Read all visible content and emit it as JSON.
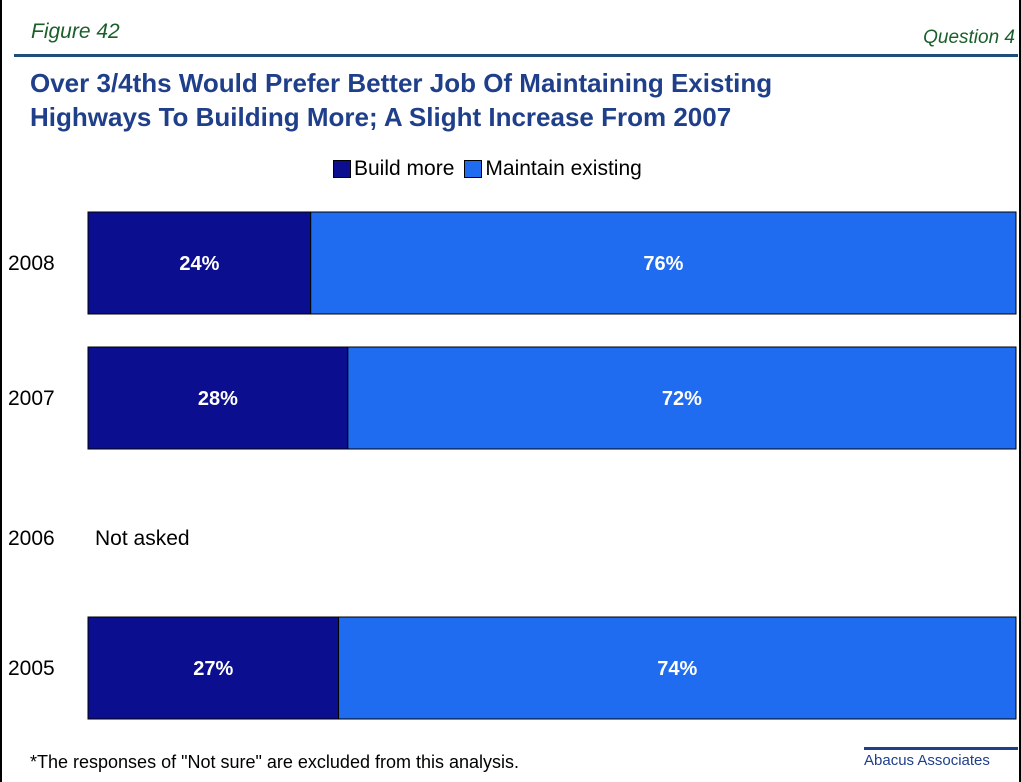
{
  "header": {
    "figure": "Figure 42",
    "question": "Question 4",
    "title_line1": "Over 3/4ths Would Prefer Better Job Of Maintaining Existing",
    "title_line2": "Highways To Building More; A Slight Increase From 2007"
  },
  "footnote": "*The responses of \"Not sure\" are excluded from this analysis.",
  "source": "Abacus Associates",
  "colors": {
    "build_more": "#0b0e8f",
    "maintain_existing": "#1f6cf0",
    "title": "#1f3f8a"
  },
  "chart_data": {
    "type": "bar",
    "orientation": "horizontal",
    "stacked": true,
    "categories": [
      "2008",
      "2007",
      "2006",
      "2005"
    ],
    "series": [
      {
        "name": "Build more",
        "values": [
          24,
          28,
          null,
          27
        ],
        "labels": [
          "24%",
          "28%",
          "",
          "27%"
        ]
      },
      {
        "name": "Maintain existing",
        "values": [
          76,
          72,
          null,
          74
        ],
        "labels": [
          "76%",
          "72%",
          "",
          "74%"
        ]
      }
    ],
    "annotations": [
      {
        "category": "2006",
        "text": "Not asked"
      }
    ],
    "title": "Over 3/4ths Would Prefer Better Job Of Maintaining Existing Highways To Building More; A Slight Increase From 2007",
    "legend_position": "top-center",
    "grid": false
  }
}
